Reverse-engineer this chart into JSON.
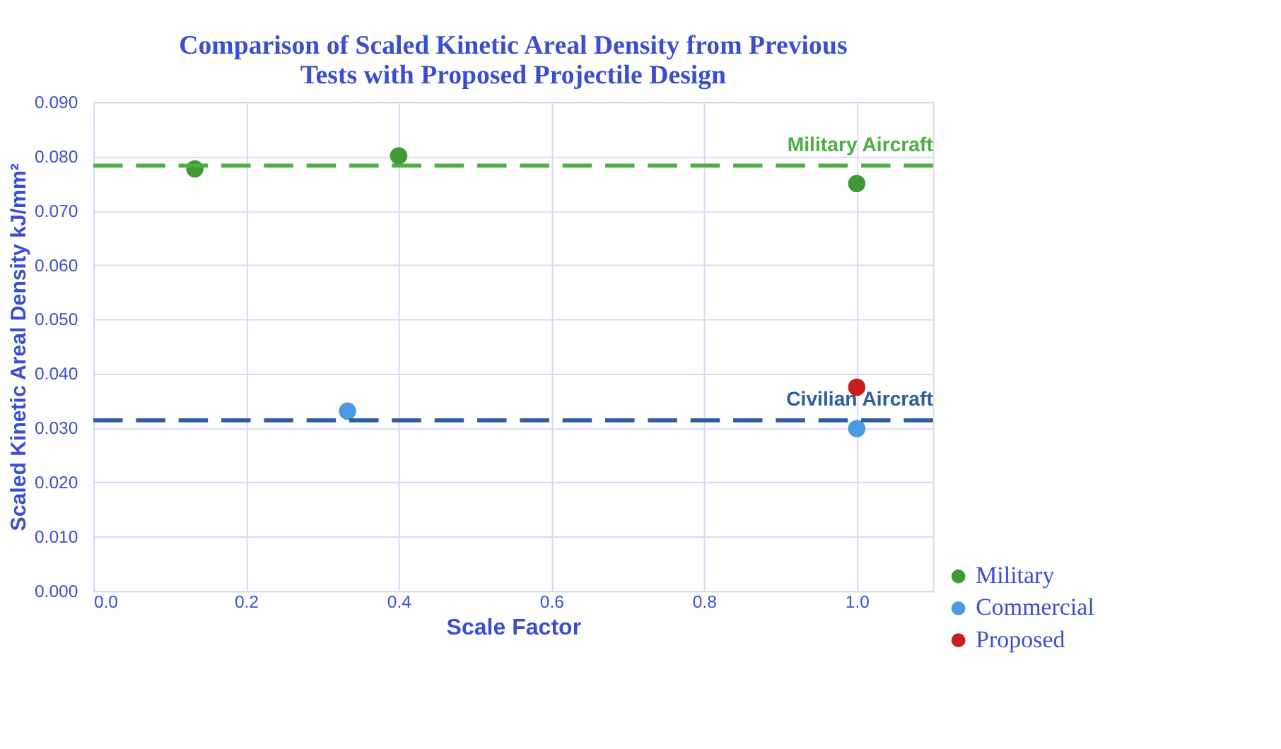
{
  "chart_data": {
    "type": "scatter",
    "title": "Comparison of Scaled Kinetic Areal Density from Previous Tests with Proposed Projectile Design",
    "xlabel": "Scale Factor",
    "ylabel": "Scaled Kinetic Areal Density kJ/mm²",
    "xlim": [
      0,
      1.1
    ],
    "xticks": [
      {
        "value": 0,
        "label": "0.0"
      },
      {
        "value": 0.2,
        "label": "0.2"
      },
      {
        "value": 0.4,
        "label": "0.4"
      },
      {
        "value": 0.6,
        "label": "0.6"
      },
      {
        "value": 0.8,
        "label": "0.8"
      },
      {
        "value": 1.0,
        "label": "1.0"
      }
    ],
    "ylim": [
      0,
      0.09
    ],
    "yticks": [
      {
        "value": 0,
        "label": "0.000"
      },
      {
        "value": 0.01,
        "label": "0.010"
      },
      {
        "value": 0.02,
        "label": "0.020"
      },
      {
        "value": 0.03,
        "label": "0.030"
      },
      {
        "value": 0.04,
        "label": "0.040"
      },
      {
        "value": 0.05,
        "label": "0.050"
      },
      {
        "value": 0.06,
        "label": "0.060"
      },
      {
        "value": 0.07,
        "label": "0.070"
      },
      {
        "value": 0.08,
        "label": "0.080"
      },
      {
        "value": 0.09,
        "label": "0.090"
      }
    ],
    "grid": true,
    "legend": "bottom right",
    "marker": "circle",
    "series": [
      {
        "name": "Military",
        "color": "#3f9a35",
        "x": [
          0.133,
          0.4,
          1.0
        ],
        "values": [
          0.0777,
          0.0801,
          0.075
        ]
      },
      {
        "name": "Commercial",
        "color": "#4a9be0",
        "x": [
          0.333,
          1.0
        ],
        "values": [
          0.0331,
          0.0299
        ]
      },
      {
        "name": "Proposed",
        "color": "#c81e1e",
        "x": [
          1.0
        ],
        "values": [
          0.0375
        ]
      }
    ],
    "ref_lines": [
      {
        "axis": "y",
        "value": 0.0783,
        "label": "Military Aircraft",
        "color": "#4caf45",
        "line_style": "dashed"
      },
      {
        "axis": "y",
        "value": 0.0314,
        "label": "Civilian Aircraft",
        "color": "#2c5f9e",
        "line_style": "dashed"
      }
    ]
  }
}
